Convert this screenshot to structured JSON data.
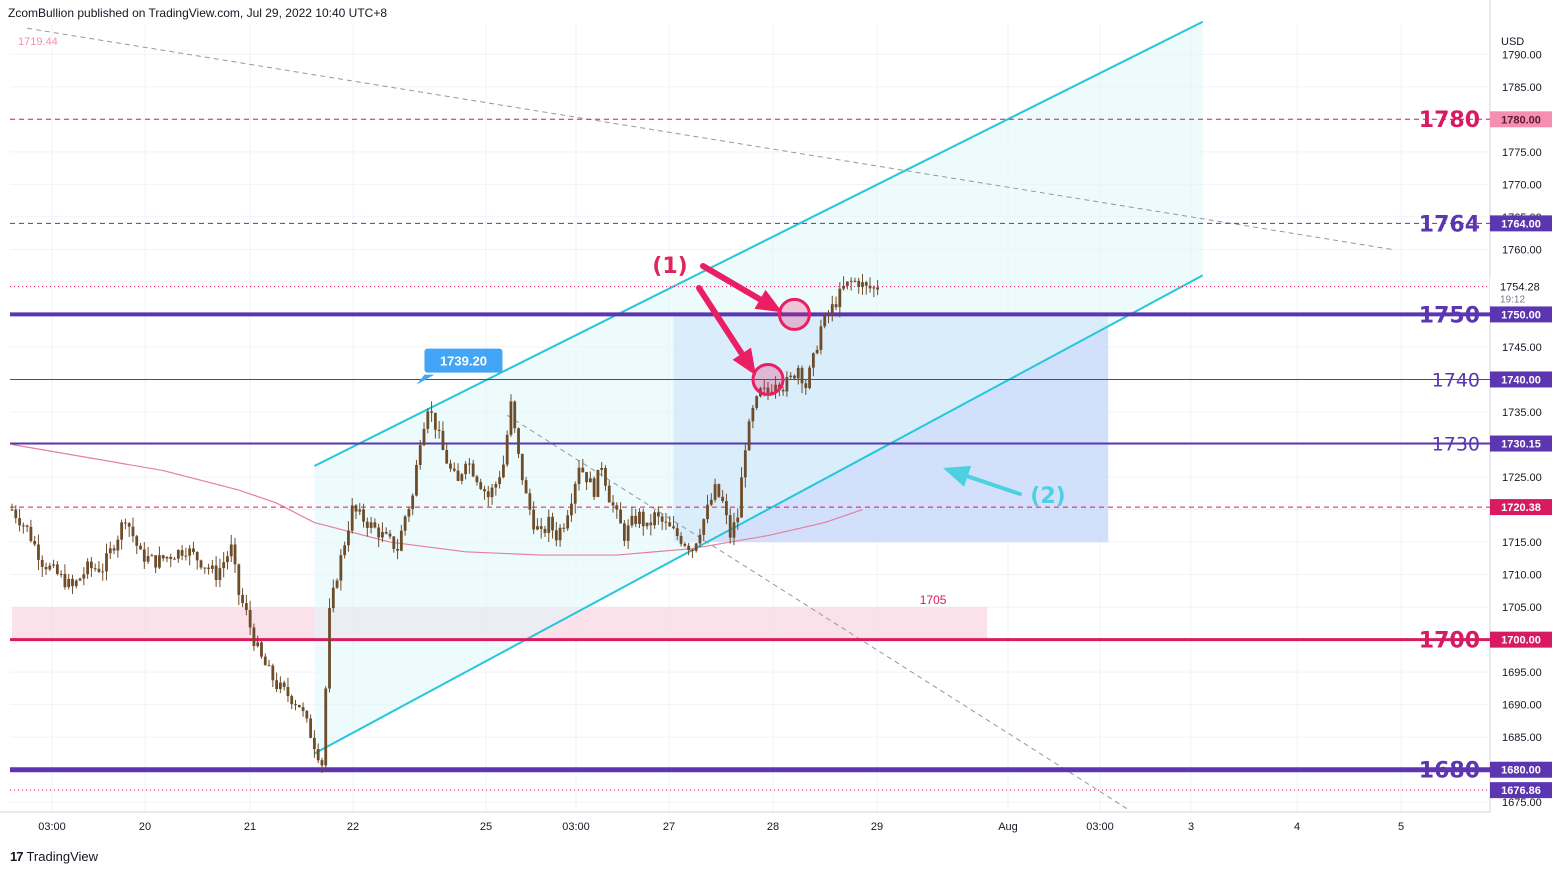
{
  "header": {
    "published": "ZcomBullion published on TradingView.com, Jul 29, 2022 10:40 UTC+8"
  },
  "footer": {
    "logo": "17",
    "brand": "TradingView"
  },
  "colors": {
    "candle": "#6d4c2a",
    "channel": "#26c6da",
    "channel_fill": "#e0f7fa",
    "zone_blue": "#c7d8fb",
    "zone_pink": "#f8d7e3",
    "purple": "#5b36b0",
    "magenta": "#d81b60",
    "pink_label": "#f48fb1",
    "ma": "#e57fa0",
    "arrow": "#e91e63",
    "arrow2": "#4dd0e1",
    "callout": "#42a5f5"
  },
  "chart_data": {
    "type": "candlestick",
    "title": "",
    "currency": "USD",
    "x_tick_labels": [
      "03:00",
      "20",
      "21",
      "22",
      "25",
      "03:00",
      "27",
      "28",
      "29",
      "Aug",
      "03:00",
      "3",
      "4",
      "5"
    ],
    "y_ticks": [
      1675,
      1680,
      1685,
      1690,
      1695,
      1700,
      1705,
      1710,
      1715,
      1720,
      1725,
      1730,
      1735,
      1740,
      1745,
      1750,
      1755,
      1760,
      1765,
      1770,
      1775,
      1780,
      1785,
      1790
    ],
    "ylim": [
      1673.5,
      1794.5
    ],
    "bar_count": 230,
    "anchors": [
      [
        0,
        1720
      ],
      [
        4,
        1717
      ],
      [
        8,
        1712
      ],
      [
        12,
        1710
      ],
      [
        16,
        1708
      ],
      [
        20,
        1711
      ],
      [
        24,
        1711
      ],
      [
        28,
        1716
      ],
      [
        30,
        1719
      ],
      [
        34,
        1713
      ],
      [
        38,
        1712
      ],
      [
        42,
        1713
      ],
      [
        46,
        1714
      ],
      [
        50,
        1712
      ],
      [
        54,
        1710
      ],
      [
        56,
        1712
      ],
      [
        58,
        1714
      ],
      [
        60,
        1707
      ],
      [
        62,
        1704
      ],
      [
        64,
        1700
      ],
      [
        66,
        1697
      ],
      [
        68,
        1695
      ],
      [
        70,
        1693
      ],
      [
        72,
        1692
      ],
      [
        74,
        1691
      ],
      [
        76,
        1690
      ],
      [
        78,
        1687
      ],
      [
        80,
        1684
      ],
      [
        82,
        1681
      ],
      [
        84,
        1704
      ],
      [
        86,
        1710
      ],
      [
        88,
        1715
      ],
      [
        90,
        1720
      ],
      [
        92,
        1719
      ],
      [
        94,
        1718
      ],
      [
        96,
        1717
      ],
      [
        98,
        1716
      ],
      [
        100,
        1715
      ],
      [
        102,
        1714
      ],
      [
        104,
        1719
      ],
      [
        106,
        1722
      ],
      [
        108,
        1731
      ],
      [
        110,
        1736
      ],
      [
        112,
        1733
      ],
      [
        114,
        1729
      ],
      [
        116,
        1726
      ],
      [
        118,
        1724
      ],
      [
        120,
        1728
      ],
      [
        122,
        1726
      ],
      [
        124,
        1724
      ],
      [
        126,
        1722
      ],
      [
        128,
        1724
      ],
      [
        130,
        1727
      ],
      [
        132,
        1736
      ],
      [
        134,
        1728
      ],
      [
        136,
        1722
      ],
      [
        138,
        1718
      ],
      [
        140,
        1716
      ],
      [
        142,
        1718
      ],
      [
        144,
        1716
      ],
      [
        146,
        1718
      ],
      [
        148,
        1722
      ],
      [
        150,
        1727
      ],
      [
        152,
        1725
      ],
      [
        154,
        1723
      ],
      [
        156,
        1727
      ],
      [
        158,
        1722
      ],
      [
        160,
        1719
      ],
      [
        162,
        1716
      ],
      [
        164,
        1718
      ],
      [
        166,
        1719
      ],
      [
        168,
        1717
      ],
      [
        170,
        1719
      ],
      [
        172,
        1718
      ],
      [
        174,
        1717
      ],
      [
        176,
        1716
      ],
      [
        178,
        1715
      ],
      [
        180,
        1714
      ],
      [
        182,
        1717
      ],
      [
        184,
        1720
      ],
      [
        186,
        1723
      ],
      [
        188,
        1721
      ],
      [
        190,
        1716
      ],
      [
        192,
        1719
      ],
      [
        194,
        1730
      ],
      [
        196,
        1735
      ],
      [
        198,
        1738
      ],
      [
        200,
        1738
      ],
      [
        202,
        1740
      ],
      [
        204,
        1739
      ],
      [
        206,
        1740
      ],
      [
        208,
        1742
      ],
      [
        210,
        1739
      ],
      [
        212,
        1743
      ],
      [
        214,
        1748
      ],
      [
        216,
        1750
      ],
      [
        218,
        1752
      ],
      [
        220,
        1754
      ],
      [
        222,
        1755
      ],
      [
        224,
        1755
      ],
      [
        226,
        1754
      ],
      [
        228,
        1754
      ],
      [
        229,
        1754.28
      ]
    ],
    "channel": {
      "upper": [
        [
          80,
          1726.7
        ],
        [
          315,
          1795
        ]
      ],
      "lower": [
        [
          80,
          1682.5
        ],
        [
          315,
          1756
        ]
      ],
      "right_bar": 315
    },
    "zones": [
      {
        "name": "blue-zone",
        "from_bar": 175,
        "to_bar": 290,
        "low": 1715,
        "high": 1750
      },
      {
        "name": "pink-zone",
        "from_bar": 0,
        "to_bar": 258,
        "low": 1700,
        "high": 1705
      }
    ],
    "moving_average": [
      [
        0,
        1730
      ],
      [
        20,
        1728
      ],
      [
        40,
        1726
      ],
      [
        60,
        1723
      ],
      [
        70,
        1721
      ],
      [
        80,
        1718
      ],
      [
        100,
        1715
      ],
      [
        120,
        1713.5
      ],
      [
        140,
        1713
      ],
      [
        160,
        1713
      ],
      [
        180,
        1714
      ],
      [
        200,
        1716
      ],
      [
        215,
        1718
      ],
      [
        225,
        1720
      ]
    ],
    "trendlines": [
      {
        "name": "desc-resistance",
        "from": [
          4,
          1794
        ],
        "to": [
          365,
          1760
        ],
        "style": "dashed"
      },
      {
        "name": "desc-support",
        "from": [
          131,
          1734.5
        ],
        "to": [
          295,
          1674
        ],
        "style": "dashed"
      }
    ],
    "levels": [
      {
        "price": 1780,
        "label": "1780",
        "axis": "1780.00",
        "color": "#d81b60",
        "style": "dashed",
        "width": 1,
        "axis_bg": "#f48fb1",
        "size": "big"
      },
      {
        "price": 1764,
        "label": "1764",
        "axis": "1764.00",
        "color": "#5b36b0",
        "style": "dashed",
        "width": 1,
        "axis_bg": "#5b36b0",
        "size": "big"
      },
      {
        "price": 1754.28,
        "label": "",
        "axis": "1754.28",
        "color": "#d81b60",
        "style": "dotted",
        "width": 1,
        "axis_bg": "",
        "size": ""
      },
      {
        "price": 1750,
        "label": "1750",
        "axis": "1750.00",
        "color": "#5b36b0",
        "style": "solid",
        "width": 4,
        "axis_bg": "#5b36b0",
        "size": "big"
      },
      {
        "price": 1740,
        "label": "1740",
        "axis": "1740.00",
        "color": "#5b36b0",
        "style": "solid",
        "width": 1,
        "axis_bg": "#5b36b0",
        "size": "mid"
      },
      {
        "price": 1730.15,
        "label": "1730",
        "axis": "1730.15",
        "color": "#5b36b0",
        "style": "solid",
        "width": 2,
        "axis_bg": "#5b36b0",
        "size": "mid"
      },
      {
        "price": 1720.38,
        "label": "",
        "axis": "1720.38",
        "color": "#d81b60",
        "style": "dashed",
        "width": 1,
        "axis_bg": "#d81b60",
        "size": ""
      },
      {
        "price": 1700,
        "label": "1700",
        "axis": "1700.00",
        "color": "#d81b60",
        "style": "solid",
        "width": 3,
        "axis_bg": "#d81b60",
        "size": "big"
      },
      {
        "price": 1680,
        "label": "1680",
        "axis": "1680.00",
        "color": "#5b36b0",
        "style": "solid",
        "width": 5,
        "axis_bg": "#5b36b0",
        "size": "big"
      },
      {
        "price": 1676.86,
        "label": "",
        "axis": "1676.86",
        "color": "#d81b60",
        "style": "dotted",
        "width": 1,
        "axis_bg": "#5b36b0",
        "size": ""
      }
    ],
    "annotations": {
      "top_left_price": "1719.44",
      "current_price": "1754.28",
      "countdown": "19:12",
      "callout": {
        "text": "1739.20",
        "bar": 107,
        "price": 1739.2
      },
      "zone_label": {
        "text": "1705",
        "bar": 248,
        "price": 1705
      },
      "label_1": "(1)",
      "label_2": "(2)",
      "circles": [
        {
          "bar": 200,
          "price": 1740
        },
        {
          "bar": 207,
          "price": 1750
        }
      ]
    }
  }
}
